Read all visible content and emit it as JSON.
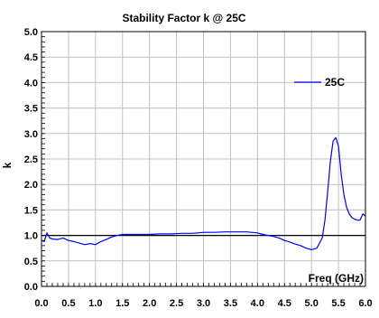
{
  "chart_data": {
    "type": "line",
    "title": "Stability Factor k @ 25C",
    "xlabel": "Freq (GHz)",
    "ylabel": "k",
    "xlim": [
      0.0,
      6.0
    ],
    "ylim": [
      0.0,
      5.0
    ],
    "x_ticks": [
      "0.0",
      "0.5",
      "1.0",
      "1.5",
      "2.0",
      "2.5",
      "3.0",
      "3.5",
      "4.0",
      "4.5",
      "5.0",
      "5.5",
      "6.0"
    ],
    "y_ticks": [
      "0.0",
      "0.5",
      "1.0",
      "1.5",
      "2.0",
      "2.5",
      "3.0",
      "3.5",
      "4.0",
      "4.5",
      "5.0"
    ],
    "grid": true,
    "legend_position": "right, upper",
    "colors": {
      "series": "#0000ff",
      "reference": "#000000",
      "grid": "#c0c0c0"
    },
    "reference_line": {
      "y": 1.0
    },
    "series": [
      {
        "name": "25C",
        "x": [
          0.0,
          0.05,
          0.1,
          0.15,
          0.2,
          0.3,
          0.4,
          0.5,
          0.6,
          0.7,
          0.8,
          0.9,
          1.0,
          1.1,
          1.2,
          1.3,
          1.4,
          1.5,
          1.6,
          1.8,
          2.0,
          2.2,
          2.4,
          2.6,
          2.8,
          3.0,
          3.2,
          3.4,
          3.6,
          3.8,
          4.0,
          4.1,
          4.2,
          4.3,
          4.4,
          4.5,
          4.6,
          4.7,
          4.8,
          4.9,
          5.0,
          5.1,
          5.2,
          5.25,
          5.3,
          5.35,
          5.4,
          5.45,
          5.5,
          5.55,
          5.6,
          5.65,
          5.7,
          5.75,
          5.8,
          5.85,
          5.9,
          5.95,
          6.0
        ],
        "y": [
          0.9,
          0.88,
          1.05,
          0.95,
          0.93,
          0.92,
          0.95,
          0.9,
          0.88,
          0.85,
          0.82,
          0.84,
          0.82,
          0.88,
          0.92,
          0.97,
          1.0,
          1.02,
          1.02,
          1.02,
          1.02,
          1.03,
          1.03,
          1.04,
          1.04,
          1.06,
          1.06,
          1.07,
          1.07,
          1.07,
          1.05,
          1.02,
          1.0,
          0.98,
          0.95,
          0.9,
          0.87,
          0.83,
          0.8,
          0.75,
          0.72,
          0.75,
          0.95,
          1.3,
          1.85,
          2.45,
          2.85,
          2.92,
          2.75,
          2.2,
          1.8,
          1.55,
          1.42,
          1.35,
          1.32,
          1.3,
          1.3,
          1.42,
          1.38
        ]
      }
    ]
  }
}
